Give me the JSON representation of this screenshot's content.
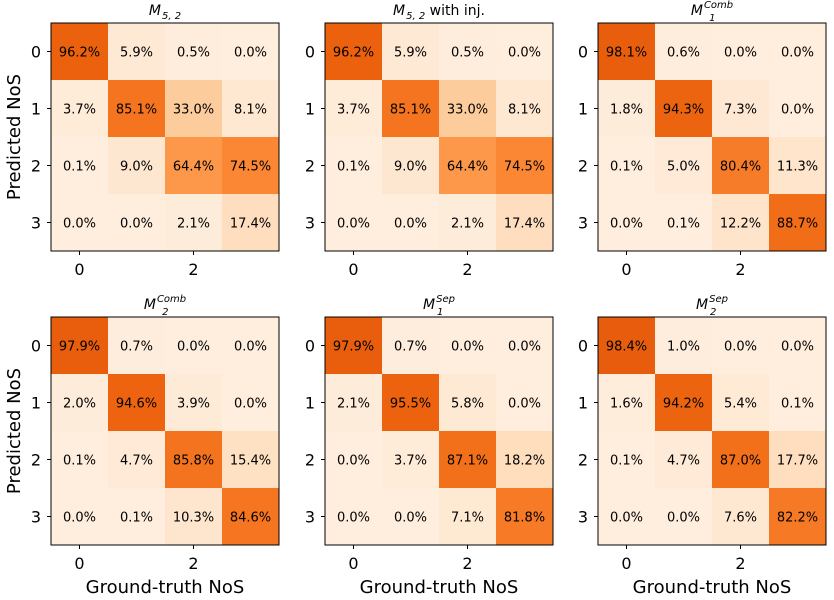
{
  "chart_data": {
    "type": "heatmap",
    "xlabel": "Ground-truth NoS",
    "ylabel": "Predicted NoS",
    "x_ticks": [
      "0",
      "2"
    ],
    "y_ticks": [
      "0",
      "1",
      "2",
      "3"
    ],
    "colormap": "Oranges",
    "panels": [
      {
        "title": {
          "base": "M",
          "sub": "5, 2",
          "sup": "",
          "suffix": ""
        },
        "values": [
          [
            96.2,
            5.9,
            0.5,
            0.0
          ],
          [
            3.7,
            85.1,
            33.0,
            8.1
          ],
          [
            0.1,
            9.0,
            64.4,
            74.5
          ],
          [
            0.0,
            0.0,
            2.1,
            17.4
          ]
        ],
        "labels": [
          [
            "96.2%",
            "5.9%",
            "0.5%",
            "0.0%"
          ],
          [
            "3.7%",
            "85.1%",
            "33.0%",
            "8.1%"
          ],
          [
            "0.1%",
            "9.0%",
            "64.4%",
            "74.5%"
          ],
          [
            "0.0%",
            "0.0%",
            "2.1%",
            "17.4%"
          ]
        ]
      },
      {
        "title": {
          "base": "M",
          "sub": "5, 2",
          "sup": "",
          "suffix": " with inj."
        },
        "values": [
          [
            96.2,
            5.9,
            0.5,
            0.0
          ],
          [
            3.7,
            85.1,
            33.0,
            8.1
          ],
          [
            0.1,
            9.0,
            64.4,
            74.5
          ],
          [
            0.0,
            0.0,
            2.1,
            17.4
          ]
        ],
        "labels": [
          [
            "96.2%",
            "5.9%",
            "0.5%",
            "0.0%"
          ],
          [
            "3.7%",
            "85.1%",
            "33.0%",
            "8.1%"
          ],
          [
            "0.1%",
            "9.0%",
            "64.4%",
            "74.5%"
          ],
          [
            "0.0%",
            "0.0%",
            "2.1%",
            "17.4%"
          ]
        ]
      },
      {
        "title": {
          "base": "M",
          "sub": "1",
          "sup": "Comb",
          "suffix": ""
        },
        "values": [
          [
            98.1,
            0.6,
            0.0,
            0.0
          ],
          [
            1.8,
            94.3,
            7.3,
            0.0
          ],
          [
            0.1,
            5.0,
            80.4,
            11.3
          ],
          [
            0.0,
            0.1,
            12.2,
            88.7
          ]
        ],
        "labels": [
          [
            "98.1%",
            "0.6%",
            "0.0%",
            "0.0%"
          ],
          [
            "1.8%",
            "94.3%",
            "7.3%",
            "0.0%"
          ],
          [
            "0.1%",
            "5.0%",
            "80.4%",
            "11.3%"
          ],
          [
            "0.0%",
            "0.1%",
            "12.2%",
            "88.7%"
          ]
        ]
      },
      {
        "title": {
          "base": "M",
          "sub": "2",
          "sup": "Comb",
          "suffix": ""
        },
        "values": [
          [
            97.9,
            0.7,
            0.0,
            0.0
          ],
          [
            2.0,
            94.6,
            3.9,
            0.0
          ],
          [
            0.1,
            4.7,
            85.8,
            15.4
          ],
          [
            0.0,
            0.1,
            10.3,
            84.6
          ]
        ],
        "labels": [
          [
            "97.9%",
            "0.7%",
            "0.0%",
            "0.0%"
          ],
          [
            "2.0%",
            "94.6%",
            "3.9%",
            "0.0%"
          ],
          [
            "0.1%",
            "4.7%",
            "85.8%",
            "15.4%"
          ],
          [
            "0.0%",
            "0.1%",
            "10.3%",
            "84.6%"
          ]
        ]
      },
      {
        "title": {
          "base": "M",
          "sub": "1",
          "sup": "Sep",
          "suffix": ""
        },
        "values": [
          [
            97.9,
            0.7,
            0.0,
            0.0
          ],
          [
            2.1,
            95.5,
            5.8,
            0.0
          ],
          [
            0.0,
            3.7,
            87.1,
            18.2
          ],
          [
            0.0,
            0.0,
            7.1,
            81.8
          ]
        ],
        "labels": [
          [
            "97.9%",
            "0.7%",
            "0.0%",
            "0.0%"
          ],
          [
            "2.1%",
            "95.5%",
            "5.8%",
            "0.0%"
          ],
          [
            "0.0%",
            "3.7%",
            "87.1%",
            "18.2%"
          ],
          [
            "0.0%",
            "0.0%",
            "7.1%",
            "81.8%"
          ]
        ]
      },
      {
        "title": {
          "base": "M",
          "sub": "2",
          "sup": "Sep",
          "suffix": ""
        },
        "values": [
          [
            98.4,
            1.0,
            0.0,
            0.0
          ],
          [
            1.6,
            94.2,
            5.4,
            0.1
          ],
          [
            0.1,
            4.7,
            87.0,
            17.7
          ],
          [
            0.0,
            0.0,
            7.6,
            82.2
          ]
        ],
        "labels": [
          [
            "98.4%",
            "1.0%",
            "0.0%",
            "0.0%"
          ],
          [
            "1.6%",
            "94.2%",
            "5.4%",
            "0.1%"
          ],
          [
            "0.1%",
            "4.7%",
            "87.0%",
            "17.7%"
          ],
          [
            "0.0%",
            "0.0%",
            "7.6%",
            "82.2%"
          ]
        ]
      }
    ]
  }
}
